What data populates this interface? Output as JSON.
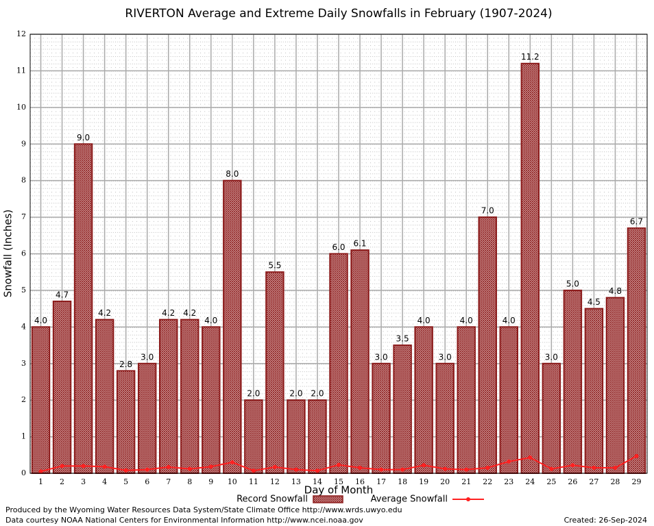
{
  "chart_data": {
    "type": "bar",
    "title": "RIVERTON Average and Extreme Daily Snowfalls in February (1907-2024)",
    "x_label": "Day of Month",
    "y_label": "Snowfall (Inches)",
    "categories": [
      "1",
      "2",
      "3",
      "4",
      "5",
      "6",
      "7",
      "8",
      "9",
      "10",
      "11",
      "12",
      "13",
      "14",
      "15",
      "16",
      "17",
      "18",
      "19",
      "20",
      "21",
      "22",
      "23",
      "24",
      "25",
      "26",
      "27",
      "28",
      "29"
    ],
    "series": [
      {
        "name": "Record Snowfall",
        "type": "bar",
        "color": "#8b1a1a",
        "values": [
          4.0,
          4.7,
          9.0,
          4.2,
          2.8,
          3.0,
          4.2,
          4.2,
          4.0,
          8.0,
          2.0,
          5.5,
          2.0,
          2.0,
          6.0,
          6.1,
          3.0,
          3.5,
          4.0,
          3.0,
          4.0,
          7.0,
          4.0,
          11.2,
          3.0,
          5.0,
          4.5,
          4.8,
          6.7
        ],
        "value_labels": [
          "4.0",
          "4.7",
          "9.0",
          "4.2",
          "2.8",
          "3.0",
          "4.2",
          "4.2",
          "4.0",
          "8.0",
          "2.0",
          "5.5",
          "2.0",
          "2.0",
          "6.0",
          "6.1",
          "3.0",
          "3.5",
          "4.0",
          "3.0",
          "4.0",
          "7.0",
          "4.0",
          "11.2",
          "3.0",
          "5.0",
          "4.5",
          "4.8",
          "6.7"
        ]
      },
      {
        "name": "Average Snowfall",
        "type": "line",
        "color": "#ff2020",
        "values": [
          0.05,
          0.2,
          0.2,
          0.18,
          0.08,
          0.1,
          0.17,
          0.12,
          0.18,
          0.3,
          0.07,
          0.17,
          0.1,
          0.07,
          0.23,
          0.15,
          0.1,
          0.1,
          0.22,
          0.12,
          0.1,
          0.15,
          0.32,
          0.43,
          0.12,
          0.22,
          0.15,
          0.15,
          0.47
        ]
      }
    ],
    "ylim": [
      0,
      12
    ],
    "yticks": [
      0,
      1,
      2,
      3,
      4,
      5,
      6,
      7,
      8,
      9,
      10,
      11,
      12
    ],
    "grid": true,
    "legend": "bottom",
    "notes": [
      "Produced by the Wyoming Water Resources Data System/State Climate Office http://www.wrds.uwyo.edu",
      "Data courtesy NOAA National Centers for Environmental Information http://www.ncei.noaa.gov"
    ],
    "created": "Created:  26-Sep-2024"
  }
}
